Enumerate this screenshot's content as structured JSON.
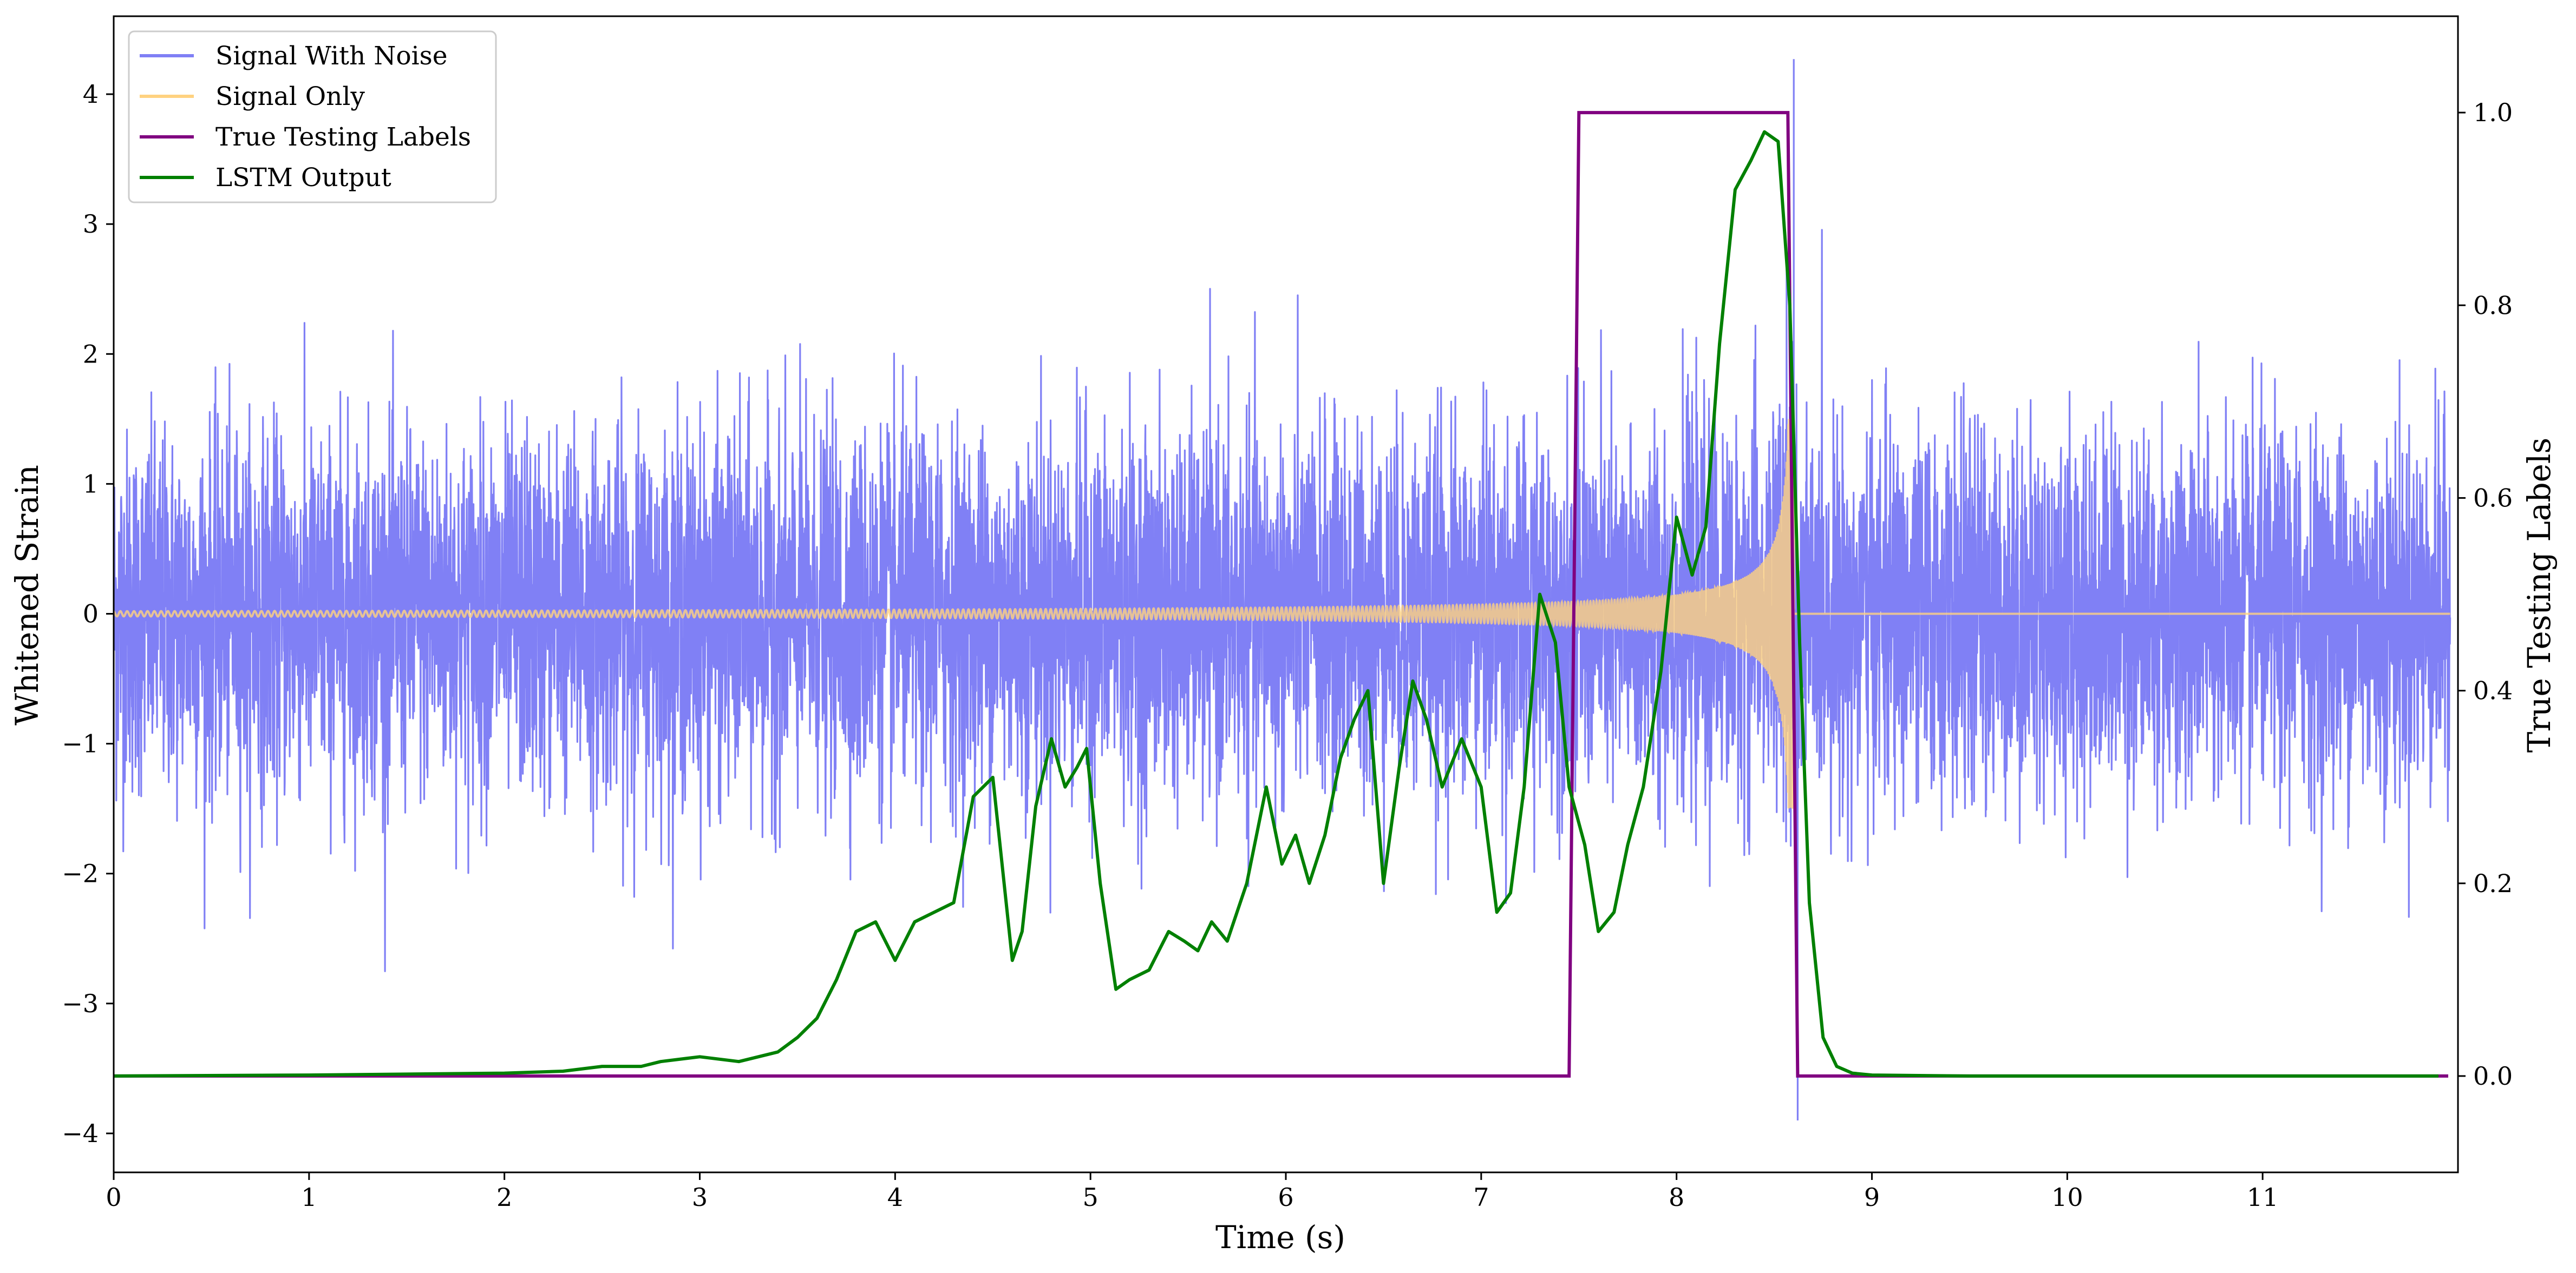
{
  "chart_data": {
    "type": "line",
    "xlabel": "Time (s)",
    "ylabel": "Whitened Strain",
    "y2label": "True Testing Labels",
    "xlim": [
      0,
      12
    ],
    "ylim": [
      -4.3,
      4.6
    ],
    "y2lim": [
      -0.1,
      1.1
    ],
    "xticks": [
      "0",
      "1",
      "2",
      "3",
      "4",
      "5",
      "6",
      "7",
      "8",
      "9",
      "10",
      "11"
    ],
    "yticks": [
      "−4",
      "−3",
      "−2",
      "−1",
      "0",
      "1",
      "2",
      "3",
      "4"
    ],
    "y2ticks": [
      "0.0",
      "0.2",
      "0.4",
      "0.6",
      "0.8",
      "1.0"
    ],
    "grid": false,
    "legend_position": "upper left",
    "legend": [
      {
        "name": "Signal With Noise",
        "color": "#8080f5"
      },
      {
        "name": "Signal Only",
        "color": "#ffd280"
      },
      {
        "name": "True Testing Labels",
        "color": "#800080"
      },
      {
        "name": "LSTM Output",
        "color": "#008000"
      }
    ],
    "series": [
      {
        "name": "Signal With Noise",
        "axis": "left",
        "color": "#8080f5",
        "description_stats": {
          "mean": 0.0,
          "std": 0.75,
          "max": 4.27,
          "min": -3.9,
          "max_at": 8.6,
          "min_at": 8.62
        }
      },
      {
        "name": "Signal Only",
        "axis": "left",
        "color": "#ffd280",
        "chirp": {
          "start": 0.0,
          "merger": 8.6,
          "amp_start": 0.02,
          "amp_merger": 1.5,
          "after_merger": 0.0
        }
      },
      {
        "name": "True Testing Labels",
        "axis": "right",
        "color": "#800080",
        "x": [
          0,
          7.45,
          7.5,
          8.57,
          8.62,
          11.95
        ],
        "y": [
          0,
          0,
          1,
          1,
          0,
          0
        ]
      },
      {
        "name": "LSTM Output",
        "axis": "right",
        "color": "#008000",
        "x": [
          0,
          1.0,
          1.5,
          2.0,
          2.3,
          2.5,
          2.7,
          2.8,
          3.0,
          3.2,
          3.4,
          3.5,
          3.6,
          3.7,
          3.8,
          3.9,
          4.0,
          4.1,
          4.2,
          4.3,
          4.4,
          4.5,
          4.6,
          4.65,
          4.72,
          4.8,
          4.87,
          4.93,
          4.98,
          5.05,
          5.13,
          5.2,
          5.3,
          5.4,
          5.48,
          5.55,
          5.62,
          5.7,
          5.8,
          5.9,
          5.98,
          6.05,
          6.12,
          6.2,
          6.28,
          6.35,
          6.42,
          6.5,
          6.58,
          6.65,
          6.72,
          6.8,
          6.9,
          7.0,
          7.08,
          7.15,
          7.22,
          7.3,
          7.38,
          7.45,
          7.53,
          7.6,
          7.68,
          7.75,
          7.83,
          7.92,
          8.0,
          8.08,
          8.15,
          8.22,
          8.3,
          8.38,
          8.45,
          8.52,
          8.58,
          8.63,
          8.68,
          8.75,
          8.82,
          8.9,
          9.0,
          9.5,
          10.0,
          11.0,
          11.9
        ],
        "y": [
          0.0,
          0.001,
          0.002,
          0.003,
          0.005,
          0.01,
          0.01,
          0.015,
          0.02,
          0.015,
          0.025,
          0.04,
          0.06,
          0.1,
          0.15,
          0.16,
          0.12,
          0.16,
          0.17,
          0.18,
          0.29,
          0.31,
          0.12,
          0.15,
          0.28,
          0.35,
          0.3,
          0.32,
          0.34,
          0.2,
          0.09,
          0.1,
          0.11,
          0.15,
          0.14,
          0.13,
          0.16,
          0.14,
          0.2,
          0.3,
          0.22,
          0.25,
          0.2,
          0.25,
          0.33,
          0.37,
          0.4,
          0.2,
          0.32,
          0.41,
          0.37,
          0.3,
          0.35,
          0.3,
          0.17,
          0.19,
          0.3,
          0.5,
          0.45,
          0.3,
          0.24,
          0.15,
          0.17,
          0.24,
          0.3,
          0.42,
          0.58,
          0.52,
          0.57,
          0.76,
          0.92,
          0.95,
          0.98,
          0.97,
          0.8,
          0.45,
          0.18,
          0.04,
          0.01,
          0.003,
          0.001,
          0.0,
          0.0,
          0.0,
          0.0
        ]
      }
    ]
  }
}
